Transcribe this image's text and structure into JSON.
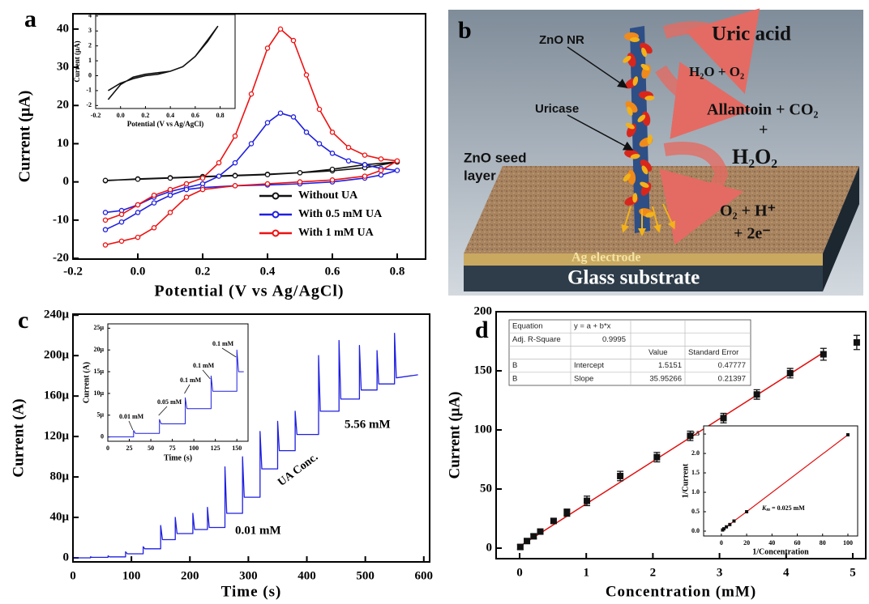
{
  "chart_data": [
    {
      "type": "line",
      "label": "a",
      "xlabel": "Potential (V vs Ag/AgCl)",
      "ylabel": "Current (μA)",
      "xlim": [
        -0.2,
        0.8875
      ],
      "ylim": [
        -20.2,
        44
      ],
      "xticks": [
        -0.2,
        {
          "value": 0,
          "label": "0.0"
        },
        0.2,
        0.4,
        0.6,
        0.8
      ],
      "yticks": [
        -20,
        -10,
        0,
        10,
        20,
        30,
        40
      ],
      "legend": "lower right",
      "series": [
        {
          "name": "Without UA",
          "color": "#111111",
          "marker": "circle",
          "x": [
            -0.1,
            0.0,
            0.1,
            0.2,
            0.3,
            0.4,
            0.5,
            0.6,
            0.7,
            0.8,
            0.7,
            0.6,
            0.5,
            0.4,
            0.3,
            0.2,
            0.1,
            0.0,
            -0.1
          ],
          "values": [
            0.3,
            0.8,
            1.1,
            1.4,
            1.7,
            2.0,
            2.4,
            2.9,
            3.7,
            5.2,
            4.5,
            3.3,
            2.4,
            1.9,
            1.6,
            1.3,
            1.0,
            0.7,
            0.4
          ]
        },
        {
          "name": "With 0.5 mM UA",
          "color": "#1f1fe0",
          "marker": "circle",
          "x": [
            -0.1,
            -0.05,
            0.0,
            0.05,
            0.1,
            0.15,
            0.2,
            0.25,
            0.3,
            0.35,
            0.4,
            0.44,
            0.48,
            0.52,
            0.56,
            0.6,
            0.65,
            0.7,
            0.75,
            0.8,
            0.75,
            0.7,
            0.6,
            0.5,
            0.4,
            0.3,
            0.2,
            0.15,
            0.1,
            0.05,
            0.0,
            -0.05,
            -0.1
          ],
          "values": [
            -8,
            -7.5,
            -6,
            -4,
            -2.5,
            -1.5,
            -0.5,
            1.5,
            5,
            10,
            15.5,
            18,
            17,
            13,
            10,
            7.5,
            5.5,
            4.5,
            3.5,
            3,
            1.8,
            1,
            0,
            -0.5,
            -0.8,
            -1,
            -1.5,
            -2,
            -3.5,
            -5.5,
            -8,
            -10.5,
            -12.5
          ]
        },
        {
          "name": "With 1 mM UA",
          "color": "#ee1111",
          "marker": "circle",
          "x": [
            -0.1,
            -0.05,
            0.0,
            0.05,
            0.1,
            0.15,
            0.2,
            0.25,
            0.3,
            0.35,
            0.4,
            0.44,
            0.48,
            0.52,
            0.56,
            0.6,
            0.65,
            0.7,
            0.75,
            0.8,
            0.75,
            0.7,
            0.6,
            0.5,
            0.4,
            0.3,
            0.2,
            0.15,
            0.1,
            0.05,
            0.0,
            -0.05,
            -0.1
          ],
          "values": [
            -10,
            -8.5,
            -6,
            -3.5,
            -2,
            -0.5,
            1,
            5,
            12,
            23,
            35,
            40,
            37,
            28,
            19,
            13,
            9,
            7,
            6,
            5.5,
            3,
            1.5,
            0.5,
            0,
            -0.5,
            -1,
            -2,
            -4,
            -8,
            -12,
            -14.5,
            -15.5,
            -16.5
          ]
        }
      ]
    },
    {
      "type": "line",
      "xlabel": "Potential (V vs Ag/AgCl)",
      "ylabel": "Current (μA)",
      "xlim": [
        -0.2,
        0.92
      ],
      "ylim": [
        -2.2,
        4.1
      ],
      "xticks": [
        -0.2,
        {
          "value": 0,
          "label": "0.0"
        },
        0.2,
        0.4,
        0.6,
        0.8
      ],
      "yticks": [
        -2,
        -1,
        0,
        1,
        2,
        3,
        4
      ],
      "series": [
        {
          "color": "#111111",
          "x": [
            -0.1,
            0.0,
            0.1,
            0.2,
            0.3,
            0.4,
            0.5,
            0.6,
            0.7,
            0.78,
            0.7,
            0.6,
            0.5,
            0.4,
            0.3,
            0.2,
            0.1,
            0.0,
            -0.1
          ],
          "values": [
            -1.6,
            -0.6,
            -0.1,
            0.1,
            0.2,
            0.3,
            0.6,
            1.3,
            2.3,
            3.3,
            2.4,
            1.3,
            0.6,
            0.3,
            0.1,
            0.0,
            -0.2,
            -0.5,
            -1.0
          ]
        }
      ]
    },
    {
      "type": "line",
      "label": "c",
      "xlabel": "Time (s)",
      "ylabel": "Current (A)",
      "color": "#1f1fe0",
      "xlim": [
        0,
        610
      ],
      "ylim": [
        -4e-06,
        0.000241
      ],
      "xticks": [
        0,
        100,
        200,
        300,
        400,
        500,
        600
      ],
      "yticks": [
        0,
        {
          "value": 4e-05,
          "label": "40μ"
        },
        {
          "value": 8e-05,
          "label": "80μ"
        },
        {
          "value": 0.00012,
          "label": "120μ"
        },
        {
          "value": 0.00016,
          "label": "160μ"
        },
        {
          "value": 0.0002,
          "label": "200μ"
        },
        {
          "value": 0.00024,
          "label": "240μ"
        }
      ],
      "annotations": [
        "5.56 mM",
        "UA Conc.",
        "0.01 mM"
      ],
      "x": [
        0,
        30,
        30,
        33,
        60,
        60,
        63,
        90,
        90,
        93,
        120,
        120,
        123,
        150,
        150,
        153,
        175,
        175,
        178,
        205,
        205,
        208,
        230,
        230,
        233,
        260,
        260,
        263,
        290,
        290,
        293,
        320,
        320,
        323,
        350,
        350,
        353,
        380,
        380,
        383,
        420,
        420,
        423,
        455,
        455,
        458,
        490,
        490,
        493,
        520,
        520,
        523,
        550,
        550,
        553,
        590
      ],
      "values": [
        0,
        0,
        1e-06,
        5e-07,
        5e-07,
        2e-06,
        1e-06,
        1e-06,
        6e-06,
        4e-06,
        4e-06,
        1.1e-05,
        9e-06,
        9e-06,
        3.2e-05,
        1.8e-05,
        1.8e-05,
        4e-05,
        2.4e-05,
        2.4e-05,
        4.4e-05,
        2.8e-05,
        2.8e-05,
        5e-05,
        3e-05,
        3e-05,
        9e-05,
        4.4e-05,
        4.4e-05,
        0.0001,
        6e-05,
        6e-05,
        0.000125,
        8.8e-05,
        8.8e-05,
        0.000135,
        0.000106,
        0.000106,
        0.000145,
        0.000122,
        0.000122,
        0.0002,
        0.000145,
        0.000145,
        0.000215,
        0.000157,
        0.000157,
        0.00021,
        0.000166,
        0.000166,
        0.000205,
        0.000172,
        0.000172,
        0.000222,
        0.000178,
        0.000181
      ]
    },
    {
      "type": "line",
      "xlabel": "Time (s)",
      "ylabel": "Current (A)",
      "color": "#1f1fe0",
      "xlim": [
        0,
        163
      ],
      "ylim": [
        -1e-06,
        2.6e-05
      ],
      "xticks": [
        0,
        25,
        50,
        75,
        100,
        125,
        150
      ],
      "yticks": [
        0,
        {
          "value": 5e-06,
          "label": "5μ"
        },
        {
          "value": 1e-05,
          "label": "10μ"
        },
        {
          "value": 1.5e-05,
          "label": "15μ"
        },
        {
          "value": 2e-05,
          "label": "20μ"
        },
        {
          "value": 2.5e-05,
          "label": "25μ"
        }
      ],
      "annotations": [
        "0.01 mM",
        "0.05 mM",
        "0.1 mM",
        "0.1 mM",
        "0.1 mM"
      ],
      "x": [
        0,
        30,
        30,
        32,
        60,
        60,
        62,
        90,
        90,
        92,
        120,
        120,
        122,
        150,
        150,
        152,
        158
      ],
      "values": [
        0,
        0,
        1.5e-06,
        8e-07,
        8e-07,
        4e-06,
        3e-06,
        3e-06,
        9e-06,
        6.5e-06,
        6.5e-06,
        1.4e-05,
        1.05e-05,
        1.05e-05,
        2e-05,
        1.5e-05,
        1.5e-05
      ]
    },
    {
      "type": "scatter",
      "label": "d",
      "xlabel": "Concentration (mM)",
      "ylabel": "Current (μA)",
      "color": "#111111",
      "fit_color": "#e01010",
      "xlim": [
        -0.353,
        5.195
      ],
      "ylim": [
        -8.9,
        200
      ],
      "xticks": [
        0,
        1,
        2,
        3,
        4,
        5
      ],
      "yticks": [
        0,
        50,
        100,
        150,
        200
      ],
      "x": [
        0.01,
        0.11,
        0.21,
        0.31,
        0.51,
        0.71,
        1.01,
        1.51,
        2.06,
        2.56,
        3.06,
        3.56,
        4.06,
        4.56,
        5.06
      ],
      "values": [
        1,
        6,
        10,
        14,
        23,
        30,
        40,
        61,
        77,
        95,
        110,
        130,
        148,
        164,
        174
      ],
      "errors": [
        2,
        2,
        2,
        2,
        2,
        3,
        4,
        4,
        4,
        4,
        4,
        4,
        4,
        5,
        6
      ],
      "fit_table": {
        "equation_label": "Equation",
        "equation": "y = a + b*x",
        "r2_label": "Adj. R-Square",
        "r2": 0.9995,
        "columns": [
          "Value",
          "Standard Error"
        ],
        "rows": [
          {
            "name": "B",
            "param": "Intercept",
            "value": 1.5151,
            "error": 0.47777
          },
          {
            "name": "B",
            "param": "Slope",
            "value": 35.95266,
            "error": 0.21397
          }
        ]
      }
    },
    {
      "type": "line",
      "xlabel": "1/Concentration",
      "ylabel": "1/Current",
      "xlim": [
        -14,
        107.7
      ],
      "ylim": [
        -0.125,
        2.71
      ],
      "xticks": [
        0,
        20,
        40,
        60,
        80,
        100
      ],
      "yticks": [
        {
          "value": 0,
          "label": "0.0"
        },
        0.5,
        {
          "value": 1,
          "label": "1.0"
        },
        1.5,
        {
          "value": 2,
          "label": "2.0"
        },
        2.5
      ],
      "km": {
        "symbol": "K",
        "subscript": "m",
        "text": "= 0.025 mM"
      },
      "series": [
        {
          "color": "#e01010",
          "marker": "square",
          "marker_color": "#111111",
          "x": [
            1,
            2,
            4,
            6.7,
            10,
            20,
            100
          ],
          "values": [
            0.03,
            0.06,
            0.11,
            0.17,
            0.26,
            0.5,
            2.48
          ]
        }
      ]
    }
  ],
  "diagram": {
    "label": "b",
    "zno_nr": "ZnO NR",
    "uric_acid": "Uric acid",
    "reactants": "H₂O + O₂",
    "uricase": "Uricase",
    "products": "Allantoin + CO₂",
    "plus": "+",
    "h2o2": "H₂O₂",
    "seed_layer": [
      "ZnO seed",
      "layer"
    ],
    "oxidation": [
      "O₂ + H⁺",
      "+ 2e⁻"
    ],
    "electrode": "Ag electrode",
    "substrate": "Glass substrate"
  }
}
